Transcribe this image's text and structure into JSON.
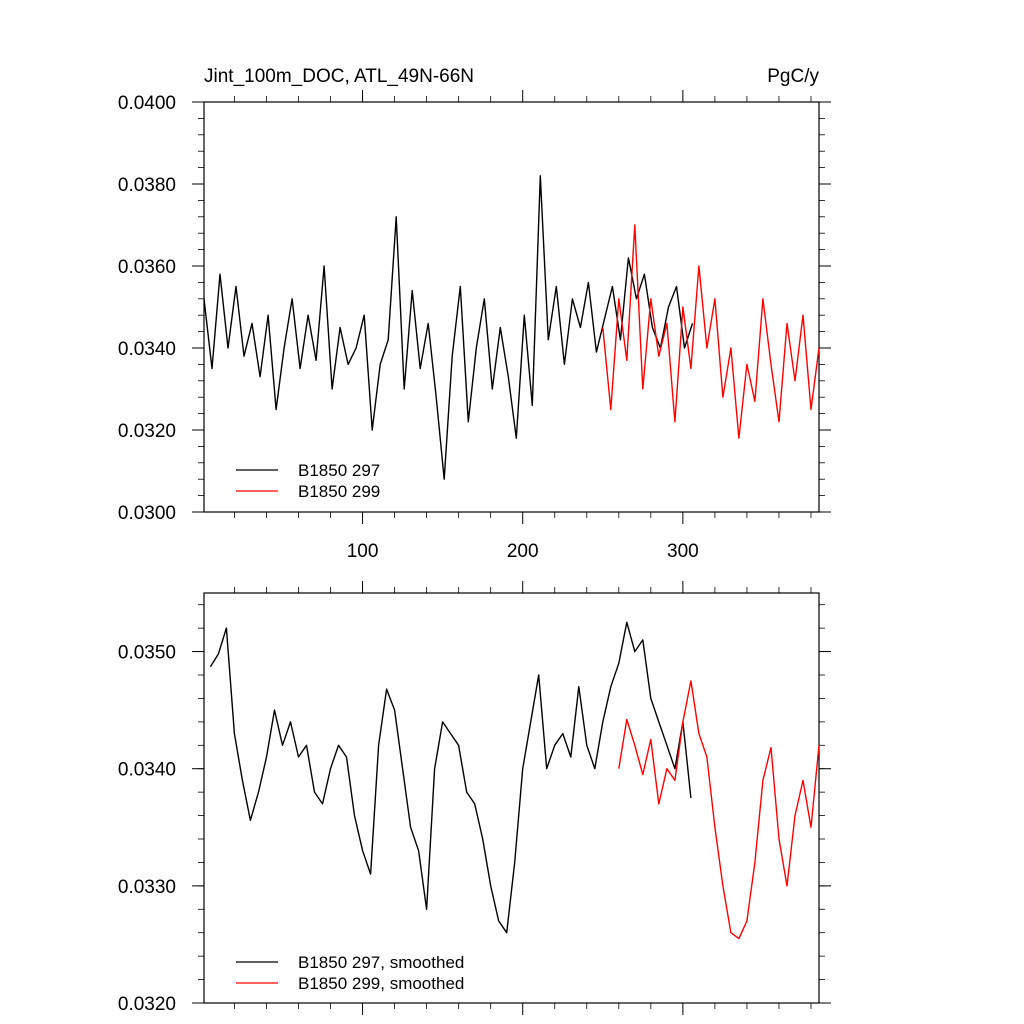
{
  "chart_data": [
    {
      "type": "line",
      "title": "Jint_100m_DOC, ATL_49N-66N",
      "units": "PgC/y",
      "xlabel": "",
      "ylabel": "",
      "xlim": [
        1,
        385
      ],
      "ylim": [
        0.03,
        0.04
      ],
      "xticks": [
        100,
        200,
        300
      ],
      "xtick_labels": [
        "100",
        "200",
        "300"
      ],
      "yticks": [
        0.03,
        0.032,
        0.034,
        0.036,
        0.038,
        0.04
      ],
      "ytick_labels": [
        "0.0300",
        "0.0320",
        "0.0340",
        "0.0360",
        "0.0380",
        "0.0400"
      ],
      "legend_position": "bottom-left",
      "series": [
        {
          "name": "B1850 297",
          "color": "#000000",
          "x": [
            1,
            6,
            11,
            16,
            21,
            26,
            31,
            36,
            41,
            46,
            51,
            56,
            61,
            66,
            71,
            76,
            81,
            86,
            91,
            96,
            101,
            106,
            111,
            116,
            121,
            126,
            131,
            136,
            141,
            146,
            151,
            156,
            161,
            166,
            171,
            176,
            181,
            186,
            191,
            196,
            201,
            206,
            211,
            216,
            221,
            226,
            231,
            236,
            241,
            246,
            251,
            256,
            261,
            266,
            271,
            276,
            281,
            286,
            291,
            296,
            301,
            306
          ],
          "values": [
            0.0352,
            0.0335,
            0.0358,
            0.034,
            0.0355,
            0.0338,
            0.0346,
            0.0333,
            0.0348,
            0.0325,
            0.034,
            0.0352,
            0.0335,
            0.0348,
            0.0337,
            0.036,
            0.033,
            0.0345,
            0.0336,
            0.034,
            0.0348,
            0.032,
            0.0336,
            0.0342,
            0.0372,
            0.033,
            0.0354,
            0.0335,
            0.0346,
            0.0328,
            0.0308,
            0.0338,
            0.0355,
            0.0322,
            0.034,
            0.0352,
            0.033,
            0.0345,
            0.0333,
            0.0318,
            0.0348,
            0.0326,
            0.0382,
            0.0342,
            0.0355,
            0.0336,
            0.0352,
            0.0345,
            0.0356,
            0.0339,
            0.0347,
            0.0355,
            0.0342,
            0.0362,
            0.0352,
            0.0358,
            0.0345,
            0.034,
            0.035,
            0.0355,
            0.034,
            0.0346
          ]
        },
        {
          "name": "B1850 299",
          "color": "#ff0000",
          "x": [
            250,
            255,
            260,
            265,
            270,
            275,
            280,
            285,
            290,
            295,
            300,
            305,
            310,
            315,
            320,
            325,
            330,
            335,
            340,
            345,
            350,
            355,
            360,
            365,
            370,
            375,
            380,
            385
          ],
          "values": [
            0.0345,
            0.0325,
            0.0352,
            0.0337,
            0.037,
            0.033,
            0.0352,
            0.0338,
            0.0346,
            0.0322,
            0.035,
            0.0335,
            0.036,
            0.034,
            0.0352,
            0.0328,
            0.034,
            0.0318,
            0.0336,
            0.0327,
            0.0352,
            0.0336,
            0.0322,
            0.0346,
            0.0332,
            0.0348,
            0.0325,
            0.034
          ]
        }
      ]
    },
    {
      "type": "line",
      "title": "",
      "xlabel": "",
      "ylabel": "",
      "xlim": [
        1,
        385
      ],
      "ylim": [
        0.032,
        0.0355
      ],
      "xticks": [
        100,
        200,
        300
      ],
      "yticks": [
        0.032,
        0.033,
        0.034,
        0.035
      ],
      "ytick_labels": [
        "0.0320",
        "0.0330",
        "0.0340",
        "0.0350"
      ],
      "legend_position": "bottom-left",
      "series": [
        {
          "name": "B1850 297, smoothed",
          "color": "#000000",
          "x": [
            5,
            10,
            15,
            20,
            25,
            30,
            35,
            40,
            45,
            50,
            55,
            60,
            65,
            70,
            75,
            80,
            85,
            90,
            95,
            100,
            105,
            110,
            115,
            120,
            125,
            130,
            135,
            140,
            145,
            150,
            155,
            160,
            165,
            170,
            175,
            180,
            185,
            190,
            195,
            200,
            205,
            210,
            215,
            220,
            225,
            230,
            235,
            240,
            245,
            250,
            255,
            260,
            265,
            270,
            275,
            280,
            285,
            290,
            295,
            300,
            305
          ],
          "values": [
            0.03487,
            0.03498,
            0.0352,
            0.0343,
            0.0339,
            0.03356,
            0.0338,
            0.0341,
            0.0345,
            0.0342,
            0.0344,
            0.0341,
            0.0342,
            0.0338,
            0.0337,
            0.034,
            0.0342,
            0.0341,
            0.0336,
            0.0333,
            0.0331,
            0.0342,
            0.03468,
            0.0345,
            0.034,
            0.0335,
            0.0333,
            0.0328,
            0.034,
            0.0344,
            0.0343,
            0.0342,
            0.0338,
            0.0337,
            0.0334,
            0.033,
            0.0327,
            0.0326,
            0.0332,
            0.034,
            0.0344,
            0.0348,
            0.034,
            0.0342,
            0.0343,
            0.0341,
            0.0347,
            0.0342,
            0.034,
            0.0344,
            0.0347,
            0.0349,
            0.03525,
            0.035,
            0.0351,
            0.0346,
            0.0344,
            0.0342,
            0.034,
            0.0344,
            0.03375
          ]
        },
        {
          "name": "B1850 299, smoothed",
          "color": "#ff0000",
          "x": [
            260,
            265,
            270,
            275,
            280,
            285,
            290,
            295,
            300,
            305,
            310,
            315,
            320,
            325,
            330,
            335,
            340,
            345,
            350,
            355,
            360,
            365,
            370,
            375,
            380,
            385
          ],
          "values": [
            0.034,
            0.03442,
            0.0342,
            0.03395,
            0.03425,
            0.0337,
            0.034,
            0.0339,
            0.0344,
            0.03475,
            0.0343,
            0.0341,
            0.0335,
            0.033,
            0.0326,
            0.03255,
            0.0327,
            0.0332,
            0.0339,
            0.03418,
            0.0334,
            0.033,
            0.0336,
            0.0339,
            0.0335,
            0.0342
          ]
        }
      ]
    }
  ]
}
